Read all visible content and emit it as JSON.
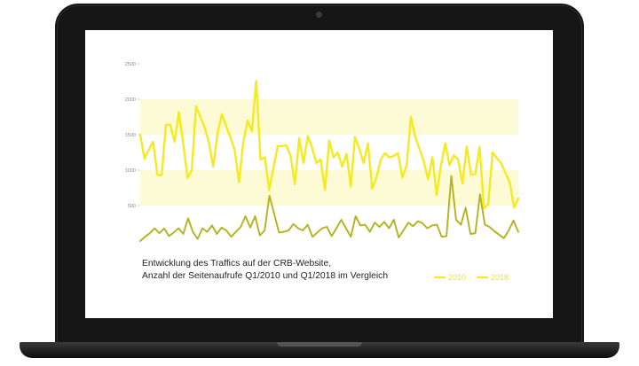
{
  "caption": {
    "line1": "Entwicklung des Traffics auf der CRB-Website,",
    "line2": "Anzahl der Seitenaufrufe Q1/2010 und Q1/2018 im Vergleich"
  },
  "colors": {
    "band": "#fdfbd6",
    "series_2018": "#f5ea20",
    "series_2010": "#b5b21c"
  },
  "chart_data": {
    "type": "line",
    "title": "",
    "xlabel": "",
    "ylabel": "",
    "ylim": [
      0,
      2500
    ],
    "yticks": [
      "2500",
      "2000",
      "1500",
      "1000",
      "500"
    ],
    "bands": [
      [
        1500,
        2000
      ],
      [
        500,
        1000
      ]
    ],
    "legend_position": "bottom-right",
    "legend": [
      "2010",
      "2018"
    ],
    "series": [
      {
        "name": "2018",
        "values": [
          1500,
          1160,
          1290,
          1400,
          930,
          930,
          1640,
          1640,
          1400,
          1820,
          1380,
          890,
          1000,
          1900,
          1750,
          1600,
          1380,
          1050,
          1520,
          1790,
          1620,
          1460,
          1280,
          830,
          1400,
          1700,
          1550,
          2260,
          1150,
          1180,
          720,
          1030,
          1340,
          1340,
          1350,
          1200,
          800,
          1450,
          1100,
          1480,
          1320,
          1100,
          1150,
          720,
          1420,
          1180,
          1250,
          1050,
          1230,
          770,
          1470,
          1300,
          1100,
          1380,
          740,
          900,
          1150,
          1240,
          1180,
          1200,
          1240,
          900,
          1060,
          1750,
          1470,
          1300,
          1120,
          870,
          1180,
          650,
          1070,
          1380,
          1070,
          1210,
          1150,
          810,
          1330,
          930,
          950,
          1330,
          460,
          520,
          1250,
          1170,
          1100,
          960,
          830,
          470,
          600
        ]
      },
      {
        "name": "2010",
        "values": [
          0,
          60,
          110,
          180,
          110,
          180,
          70,
          120,
          180,
          100,
          320,
          130,
          30,
          180,
          130,
          220,
          100,
          190,
          150,
          60,
          130,
          200,
          350,
          190,
          350,
          80,
          150,
          640,
          380,
          120,
          130,
          150,
          240,
          180,
          150,
          230,
          60,
          120,
          180,
          200,
          70,
          180,
          300,
          180,
          60,
          350,
          220,
          230,
          130,
          260,
          200,
          270,
          180,
          300,
          50,
          150,
          260,
          210,
          280,
          250,
          180,
          220,
          230,
          60,
          70,
          920,
          300,
          230,
          470,
          100,
          110,
          660,
          230,
          200,
          140,
          90,
          40,
          150,
          290,
          130
        ]
      }
    ]
  }
}
